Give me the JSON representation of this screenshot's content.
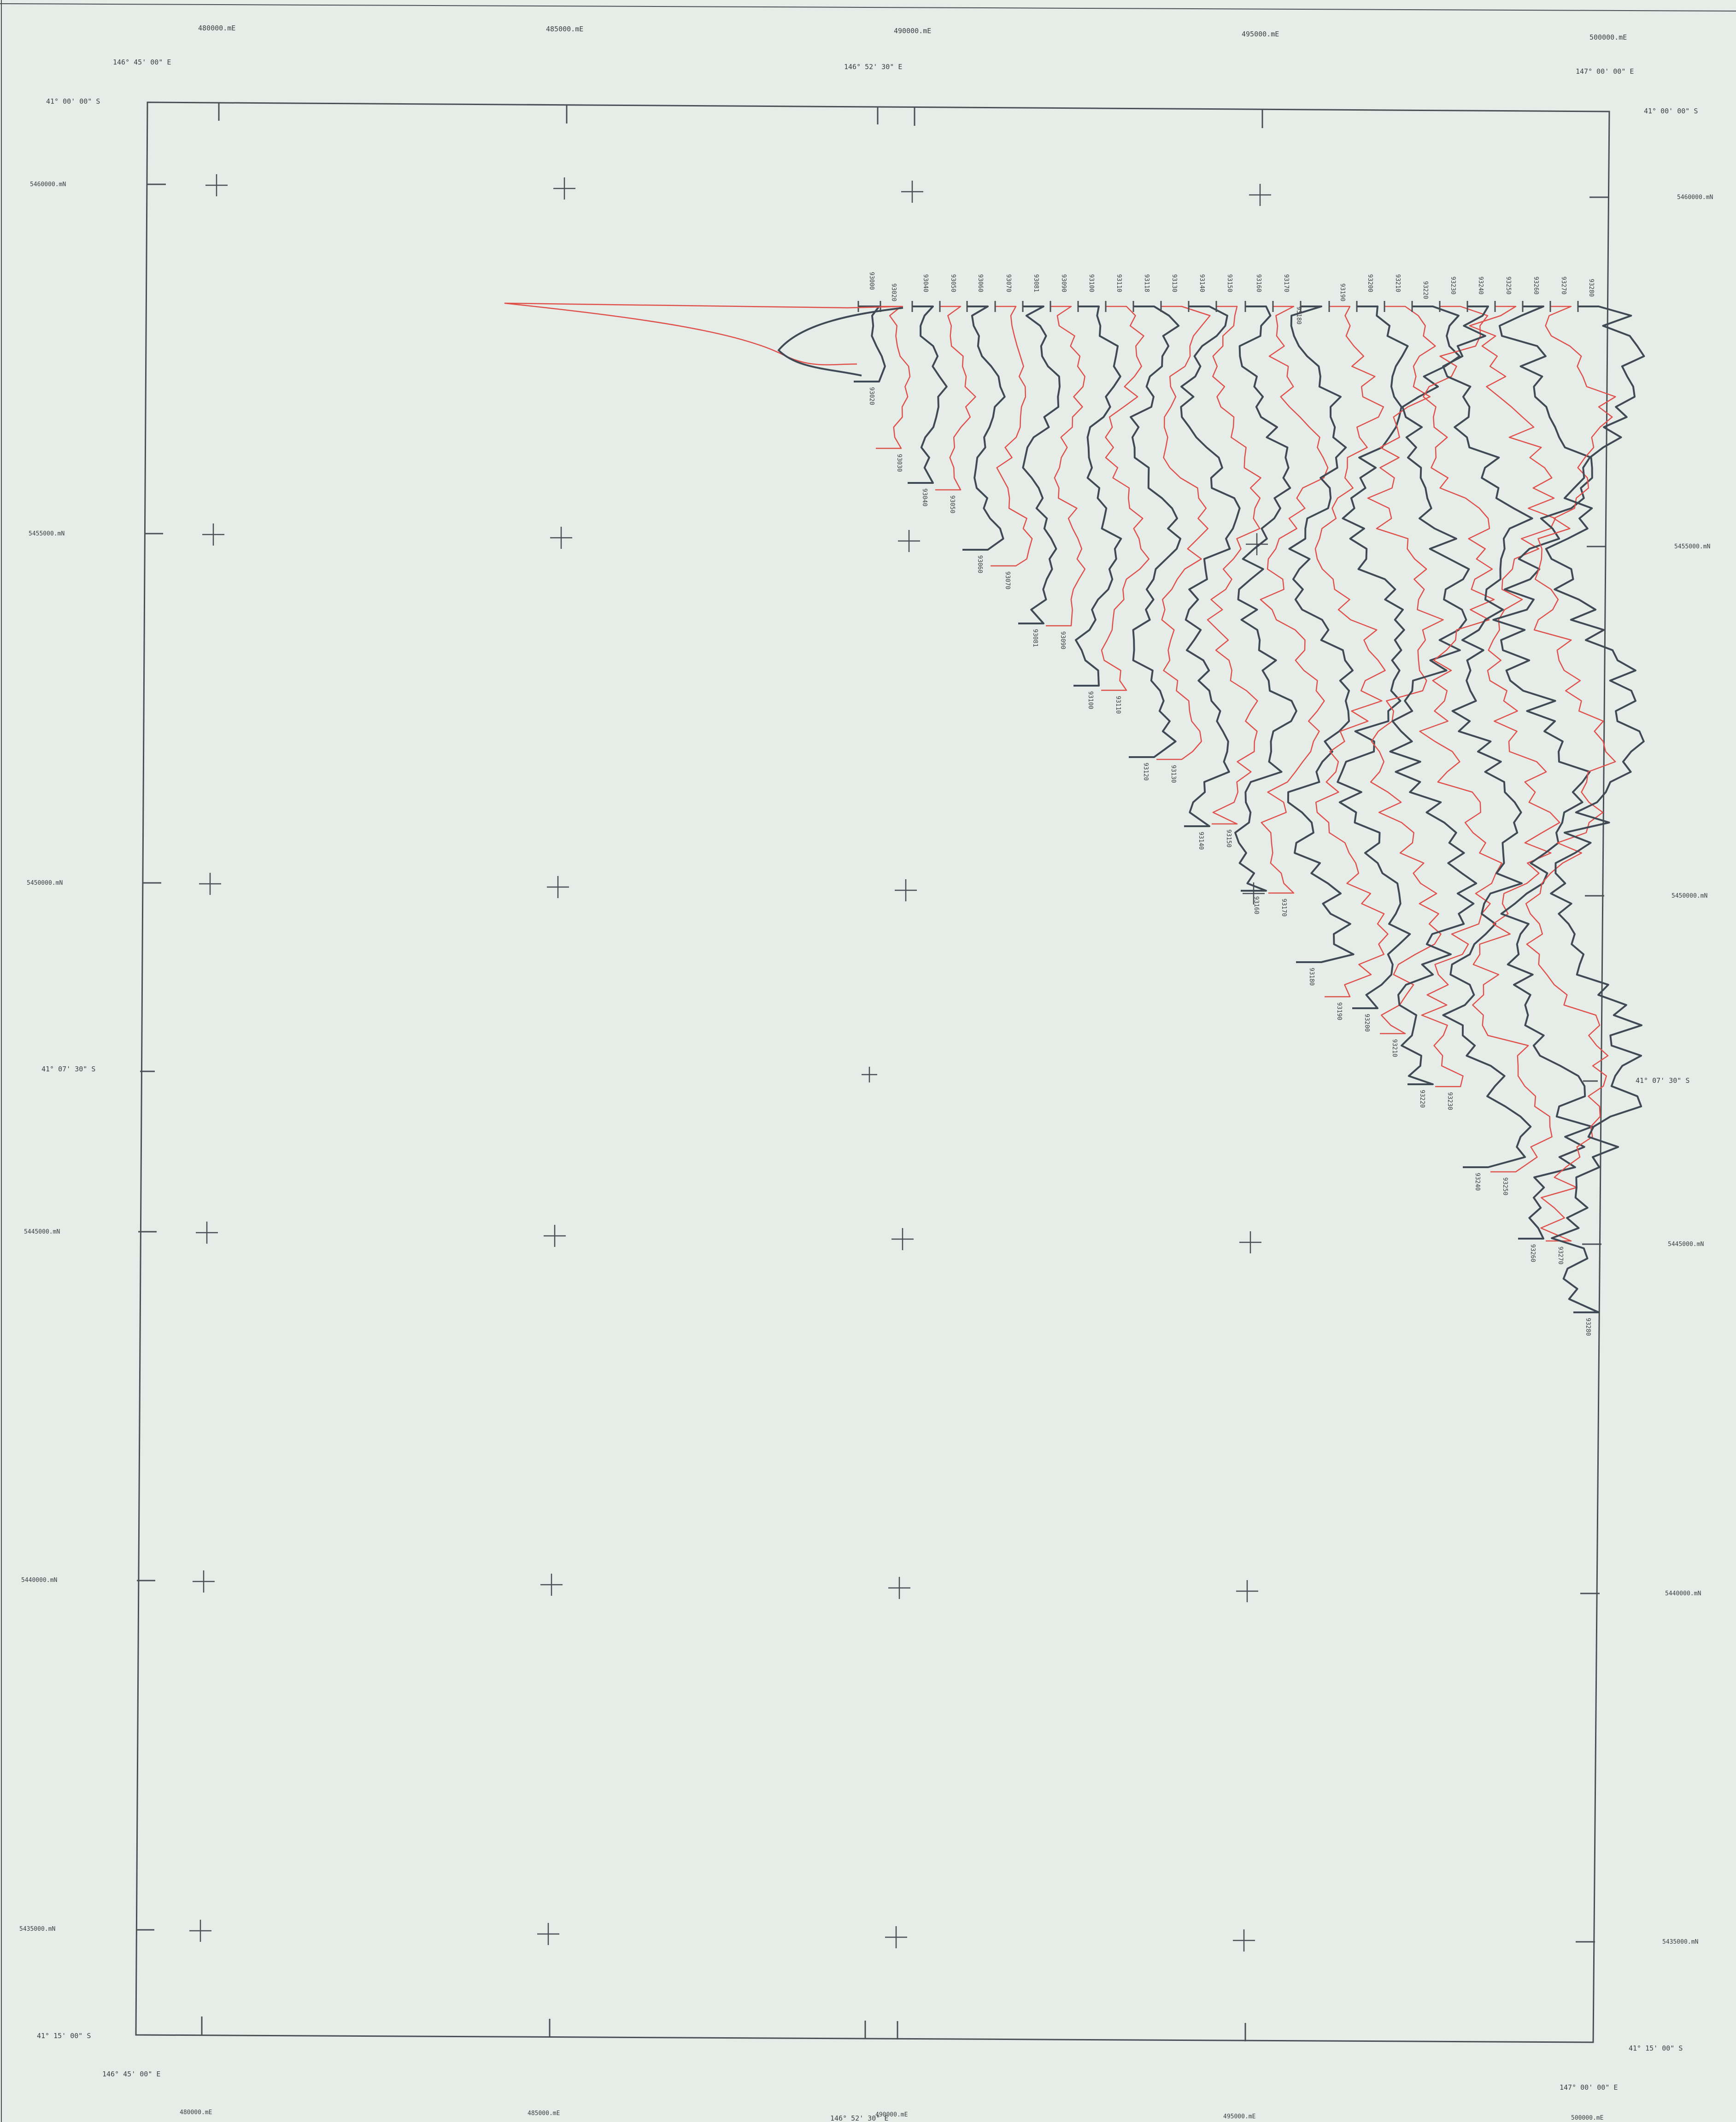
{
  "map": {
    "colors": {
      "background": "#e6ede9",
      "frame": "#4a4f55",
      "profile_dark": "#3f4a55",
      "profile_red": "#e0504a",
      "text": "#3a3f44"
    },
    "top_eastings": [
      "480000.mE",
      "485000.mE",
      "490000.mE",
      "495000.mE",
      "500000.mE"
    ],
    "bottom_eastings": [
      "480000.mE",
      "485000.mE",
      "490000.mE",
      "495000.mE",
      "500000.mE"
    ],
    "left_northings": [
      "5460000.mN",
      "5455000.mN",
      "5450000.mN",
      "5445000.mN",
      "5440000.mN",
      "5435000.mN"
    ],
    "right_northings": [
      "5460000.mN",
      "5455000.mN",
      "5450000.mN",
      "5445000.mN",
      "5440000.mN",
      "5435000.mN"
    ],
    "top_longitudes": [
      "146°  45' 00\" E",
      "146°  52' 30\" E",
      "147°  00' 00\" E"
    ],
    "bottom_longitudes": [
      "146°  45' 00\" E",
      "146°  52' 30\" E",
      "147°  00' 00\" E"
    ],
    "left_latitudes": [
      "41°  00' 00\" S",
      "41°  07' 30\" S",
      "41°  15' 00\" S"
    ],
    "right_latitudes": [
      "41°  00' 00\" S",
      "41°  07' 30\" S",
      "41°  15' 00\" S"
    ],
    "top_line_labels": [
      "93000",
      "93020",
      "93040",
      "93050",
      "93060",
      "93070",
      "93081",
      "93090",
      "93100",
      "93110",
      "93118",
      "93130",
      "93140",
      "93150",
      "93160",
      "93170",
      "93180",
      "93190",
      "93200",
      "93210",
      "93220",
      "93230",
      "93240",
      "93250",
      "93260",
      "93270",
      "93280"
    ],
    "bottom_line_labels": [
      "93020",
      "93030",
      "93040",
      "93050",
      "93060",
      "93070",
      "93081",
      "93090",
      "93100",
      "93110",
      "93120",
      "93130",
      "93140",
      "93150",
      "93160",
      "93170",
      "93180",
      "93190",
      "93200",
      "93210",
      "93220",
      "93230",
      "93240",
      "93250",
      "93260",
      "93270",
      "93280"
    ]
  }
}
